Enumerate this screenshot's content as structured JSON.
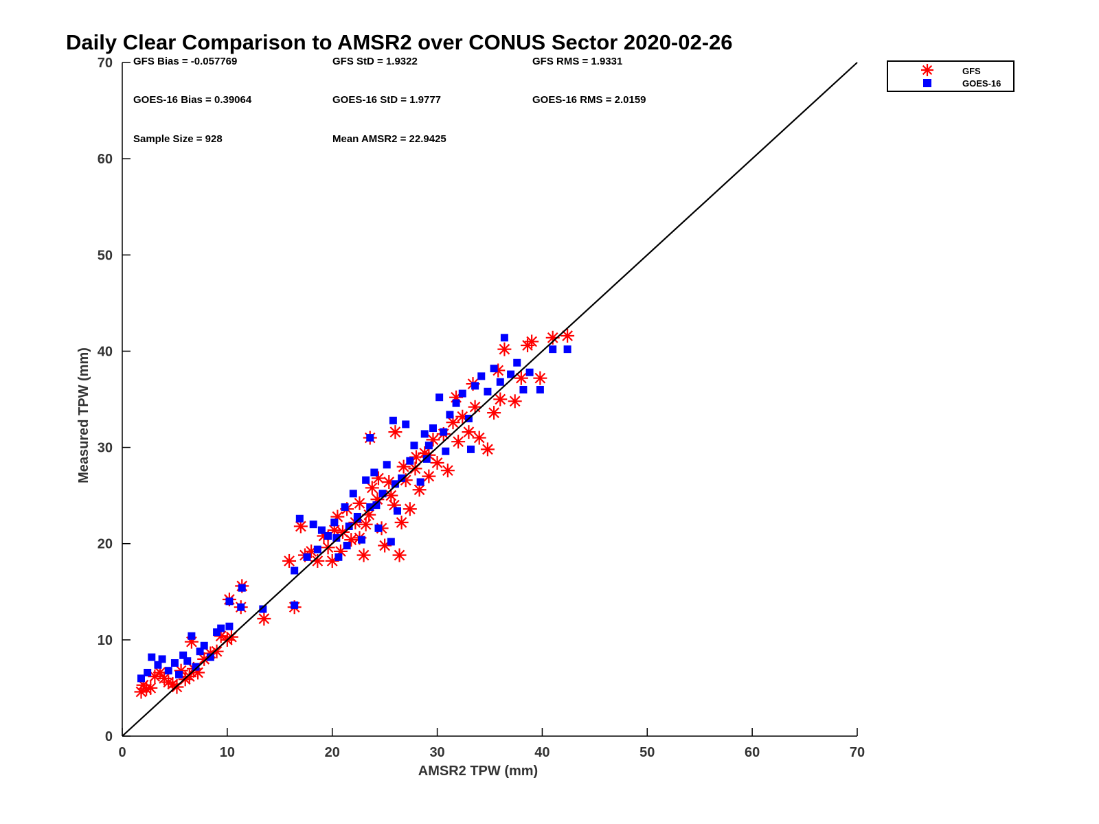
{
  "chart_data": {
    "type": "scatter",
    "title": "Daily Clear Comparison to AMSR2 over CONUS Sector 2020-02-26",
    "xlabel": "AMSR2 TPW (mm)",
    "ylabel": "Measured TPW (mm)",
    "xlim": [
      0,
      70
    ],
    "ylim": [
      0,
      70
    ],
    "xticks": [
      0,
      10,
      20,
      30,
      40,
      50,
      60,
      70
    ],
    "yticks": [
      0,
      10,
      20,
      30,
      40,
      50,
      60,
      70
    ],
    "grid": false,
    "legend_position": "outside-top-right",
    "reference_line": {
      "from": [
        0,
        0
      ],
      "to": [
        70,
        70
      ],
      "color": "#000000"
    },
    "stats": [
      [
        "GFS Bias = -0.057769",
        "GFS StD = 1.9322",
        "GFS RMS = 1.9331"
      ],
      [
        "GOES-16 Bias = 0.39064",
        "GOES-16 StD = 1.9777",
        "GOES-16 RMS = 2.0159"
      ],
      [
        "Sample Size = 928",
        "Mean AMSR2 = 22.9425",
        ""
      ]
    ],
    "series": [
      {
        "name": "GFS",
        "marker": "asterisk",
        "color": "#ff0000",
        "points": [
          [
            1.8,
            4.6
          ],
          [
            2.3,
            4.9
          ],
          [
            2.0,
            5.3
          ],
          [
            2.7,
            5.0
          ],
          [
            3.1,
            6.2
          ],
          [
            3.6,
            6.6
          ],
          [
            4.0,
            6.0
          ],
          [
            4.4,
            5.6
          ],
          [
            4.8,
            5.4
          ],
          [
            5.2,
            5.1
          ],
          [
            5.6,
            6.8
          ],
          [
            6.0,
            5.9
          ],
          [
            6.4,
            6.2
          ],
          [
            6.8,
            7.0
          ],
          [
            7.2,
            6.6
          ],
          [
            6.6,
            9.8
          ],
          [
            7.8,
            8.0
          ],
          [
            8.4,
            8.6
          ],
          [
            9.0,
            8.8
          ],
          [
            9.4,
            10.4
          ],
          [
            10.0,
            10.0
          ],
          [
            10.4,
            10.3
          ],
          [
            10.2,
            14.2
          ],
          [
            11.3,
            13.4
          ],
          [
            11.4,
            15.6
          ],
          [
            13.5,
            12.2
          ],
          [
            16.4,
            13.4
          ],
          [
            15.9,
            18.2
          ],
          [
            17.0,
            21.8
          ],
          [
            17.4,
            18.8
          ],
          [
            18.0,
            19.2
          ],
          [
            18.6,
            18.2
          ],
          [
            19.2,
            20.8
          ],
          [
            19.6,
            19.6
          ],
          [
            20.0,
            18.2
          ],
          [
            20.5,
            22.8
          ],
          [
            21.0,
            21.2
          ],
          [
            21.4,
            23.6
          ],
          [
            21.8,
            20.4
          ],
          [
            22.2,
            22.2
          ],
          [
            22.6,
            24.2
          ],
          [
            23.0,
            18.8
          ],
          [
            23.5,
            23.0
          ],
          [
            23.8,
            25.8
          ],
          [
            24.3,
            24.6
          ],
          [
            24.7,
            21.6
          ],
          [
            25.0,
            19.8
          ],
          [
            25.4,
            26.4
          ],
          [
            25.9,
            24.0
          ],
          [
            26.4,
            18.8
          ],
          [
            26.6,
            22.2
          ],
          [
            27.0,
            26.6
          ],
          [
            27.4,
            23.6
          ],
          [
            27.9,
            27.8
          ],
          [
            28.3,
            25.6
          ],
          [
            28.8,
            29.4
          ],
          [
            29.2,
            27.0
          ],
          [
            29.6,
            30.8
          ],
          [
            30.0,
            28.4
          ],
          [
            30.6,
            31.4
          ],
          [
            31.0,
            27.6
          ],
          [
            31.5,
            32.6
          ],
          [
            32.0,
            30.6
          ],
          [
            32.4,
            33.2
          ],
          [
            33.0,
            31.6
          ],
          [
            33.6,
            34.2
          ],
          [
            34.0,
            31.0
          ],
          [
            34.8,
            29.8
          ],
          [
            35.4,
            33.6
          ],
          [
            36.0,
            35.0
          ],
          [
            36.4,
            40.2
          ],
          [
            37.4,
            34.8
          ],
          [
            38.0,
            37.2
          ],
          [
            38.6,
            40.6
          ],
          [
            39.0,
            41.0
          ],
          [
            39.8,
            37.2
          ],
          [
            41.0,
            41.4
          ],
          [
            42.4,
            41.6
          ],
          [
            23.6,
            31.0
          ],
          [
            26.0,
            31.6
          ],
          [
            24.4,
            26.8
          ],
          [
            22.6,
            20.6
          ],
          [
            20.8,
            19.2
          ],
          [
            25.6,
            25.0
          ],
          [
            29.2,
            29.2
          ],
          [
            31.8,
            35.2
          ],
          [
            33.4,
            36.6
          ],
          [
            35.8,
            38.0
          ],
          [
            20.2,
            21.4
          ],
          [
            23.2,
            22.0
          ],
          [
            26.8,
            28.0
          ],
          [
            28.0,
            29.0
          ]
        ]
      },
      {
        "name": "GOES-16",
        "marker": "square",
        "color": "#0000ff",
        "points": [
          [
            1.8,
            6.0
          ],
          [
            2.4,
            6.6
          ],
          [
            2.8,
            8.2
          ],
          [
            3.4,
            7.4
          ],
          [
            3.8,
            8.0
          ],
          [
            4.4,
            6.8
          ],
          [
            5.0,
            7.6
          ],
          [
            5.4,
            6.4
          ],
          [
            5.8,
            8.4
          ],
          [
            6.2,
            7.8
          ],
          [
            6.6,
            10.4
          ],
          [
            7.0,
            7.2
          ],
          [
            7.4,
            8.8
          ],
          [
            7.8,
            9.4
          ],
          [
            8.4,
            8.2
          ],
          [
            9.0,
            10.8
          ],
          [
            9.4,
            11.2
          ],
          [
            10.2,
            11.4
          ],
          [
            10.2,
            14.0
          ],
          [
            11.3,
            13.4
          ],
          [
            11.4,
            15.4
          ],
          [
            13.4,
            13.2
          ],
          [
            16.4,
            13.6
          ],
          [
            16.4,
            17.2
          ],
          [
            16.9,
            22.6
          ],
          [
            17.6,
            18.6
          ],
          [
            18.2,
            22.0
          ],
          [
            18.6,
            19.4
          ],
          [
            19.0,
            21.4
          ],
          [
            19.6,
            20.8
          ],
          [
            20.2,
            22.2
          ],
          [
            20.6,
            18.6
          ],
          [
            21.2,
            23.8
          ],
          [
            21.6,
            21.8
          ],
          [
            22.0,
            25.2
          ],
          [
            22.4,
            22.6
          ],
          [
            22.8,
            20.4
          ],
          [
            23.2,
            26.6
          ],
          [
            23.6,
            23.8
          ],
          [
            24.0,
            27.4
          ],
          [
            24.4,
            21.6
          ],
          [
            24.8,
            25.2
          ],
          [
            25.2,
            28.2
          ],
          [
            25.6,
            20.2
          ],
          [
            26.2,
            23.4
          ],
          [
            26.6,
            26.8
          ],
          [
            27.0,
            32.4
          ],
          [
            27.4,
            28.6
          ],
          [
            27.8,
            30.2
          ],
          [
            28.4,
            26.4
          ],
          [
            28.8,
            31.4
          ],
          [
            29.2,
            30.2
          ],
          [
            29.6,
            32.0
          ],
          [
            30.2,
            35.2
          ],
          [
            30.6,
            31.6
          ],
          [
            31.2,
            33.4
          ],
          [
            31.8,
            34.6
          ],
          [
            32.4,
            35.6
          ],
          [
            33.0,
            33.0
          ],
          [
            33.6,
            36.4
          ],
          [
            34.2,
            37.4
          ],
          [
            34.8,
            35.8
          ],
          [
            35.4,
            38.2
          ],
          [
            36.0,
            36.8
          ],
          [
            36.4,
            41.4
          ],
          [
            37.0,
            37.6
          ],
          [
            37.6,
            38.8
          ],
          [
            38.2,
            36.0
          ],
          [
            38.8,
            37.8
          ],
          [
            39.8,
            36.0
          ],
          [
            41.0,
            40.2
          ],
          [
            42.4,
            40.2
          ],
          [
            23.6,
            31.0
          ],
          [
            25.8,
            32.8
          ],
          [
            21.4,
            19.8
          ],
          [
            24.2,
            24.0
          ],
          [
            26.0,
            26.2
          ],
          [
            29.0,
            28.8
          ],
          [
            30.8,
            29.6
          ],
          [
            33.2,
            29.8
          ],
          [
            22.4,
            22.8
          ],
          [
            20.4,
            20.6
          ]
        ]
      }
    ]
  }
}
